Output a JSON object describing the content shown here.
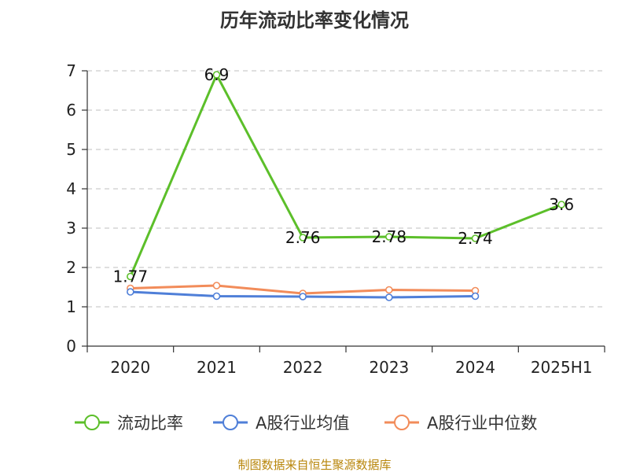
{
  "chart_data": {
    "type": "line",
    "title": "历年流动比率变化情况",
    "categories": [
      "2020",
      "2021",
      "2022",
      "2023",
      "2024",
      "2025H1"
    ],
    "ylim": [
      0,
      7
    ],
    "yticks": [
      0,
      1,
      2,
      3,
      4,
      5,
      6,
      7
    ],
    "grid": true,
    "legend_position": "bottom",
    "series": [
      {
        "name": "流动比率",
        "color": "#5cbf2a",
        "values": [
          1.77,
          6.9,
          2.76,
          2.78,
          2.74,
          3.6
        ],
        "labels": [
          "1.77",
          "6.9",
          "2.76",
          "2.78",
          "2.74",
          "3.6"
        ]
      },
      {
        "name": "A股行业均值",
        "color": "#4f7fd8",
        "values": [
          1.38,
          1.27,
          1.26,
          1.24,
          1.27,
          null
        ]
      },
      {
        "name": "A股行业中位数",
        "color": "#f28c5a",
        "values": [
          1.47,
          1.54,
          1.34,
          1.43,
          1.41,
          null
        ]
      }
    ],
    "source": "制图数据来自恒生聚源数据库"
  }
}
